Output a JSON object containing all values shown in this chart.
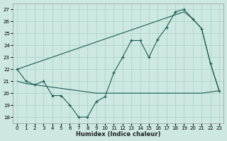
{
  "xlabel": "Humidex (Indice chaleur)",
  "background_color": "#cce8e0",
  "grid_color": "#aacfc8",
  "line_color": "#1a5f55",
  "xlim": [
    -0.5,
    23.5
  ],
  "ylim": [
    17.5,
    27.5
  ],
  "xticks": [
    0,
    1,
    2,
    3,
    4,
    5,
    6,
    7,
    8,
    9,
    10,
    11,
    12,
    13,
    14,
    15,
    16,
    17,
    18,
    19,
    20,
    21,
    22,
    23
  ],
  "yticks": [
    18,
    19,
    20,
    21,
    22,
    23,
    24,
    25,
    26,
    27
  ],
  "line_markers_x": [
    0,
    1,
    2,
    3,
    4,
    5,
    6,
    7,
    8,
    9,
    10,
    11,
    12,
    13,
    14,
    15,
    16,
    17,
    18,
    19,
    20,
    21,
    22,
    23
  ],
  "line_markers_y": [
    22.0,
    21.0,
    20.7,
    21.0,
    19.8,
    19.8,
    19.0,
    18.0,
    18.0,
    19.3,
    19.7,
    21.7,
    23.0,
    24.4,
    24.4,
    23.0,
    24.5,
    25.5,
    26.8,
    27.0,
    26.2,
    25.4,
    22.5,
    20.2
  ],
  "line_flat_x": [
    0,
    1,
    2,
    3,
    4,
    5,
    6,
    7,
    8,
    9,
    10,
    11,
    12,
    13,
    14,
    15,
    16,
    17,
    18,
    19,
    20,
    21,
    22,
    23
  ],
  "line_flat_y": [
    21.0,
    20.8,
    20.7,
    20.6,
    20.5,
    20.4,
    20.3,
    20.2,
    20.1,
    20.0,
    20.0,
    20.0,
    20.0,
    20.0,
    20.0,
    20.0,
    20.0,
    20.0,
    20.0,
    20.0,
    20.0,
    20.0,
    20.1,
    20.2
  ],
  "line_trend_x": [
    0,
    19,
    20,
    21,
    22,
    23
  ],
  "line_trend_y": [
    22.0,
    26.8,
    26.2,
    25.4,
    22.5,
    20.2
  ]
}
